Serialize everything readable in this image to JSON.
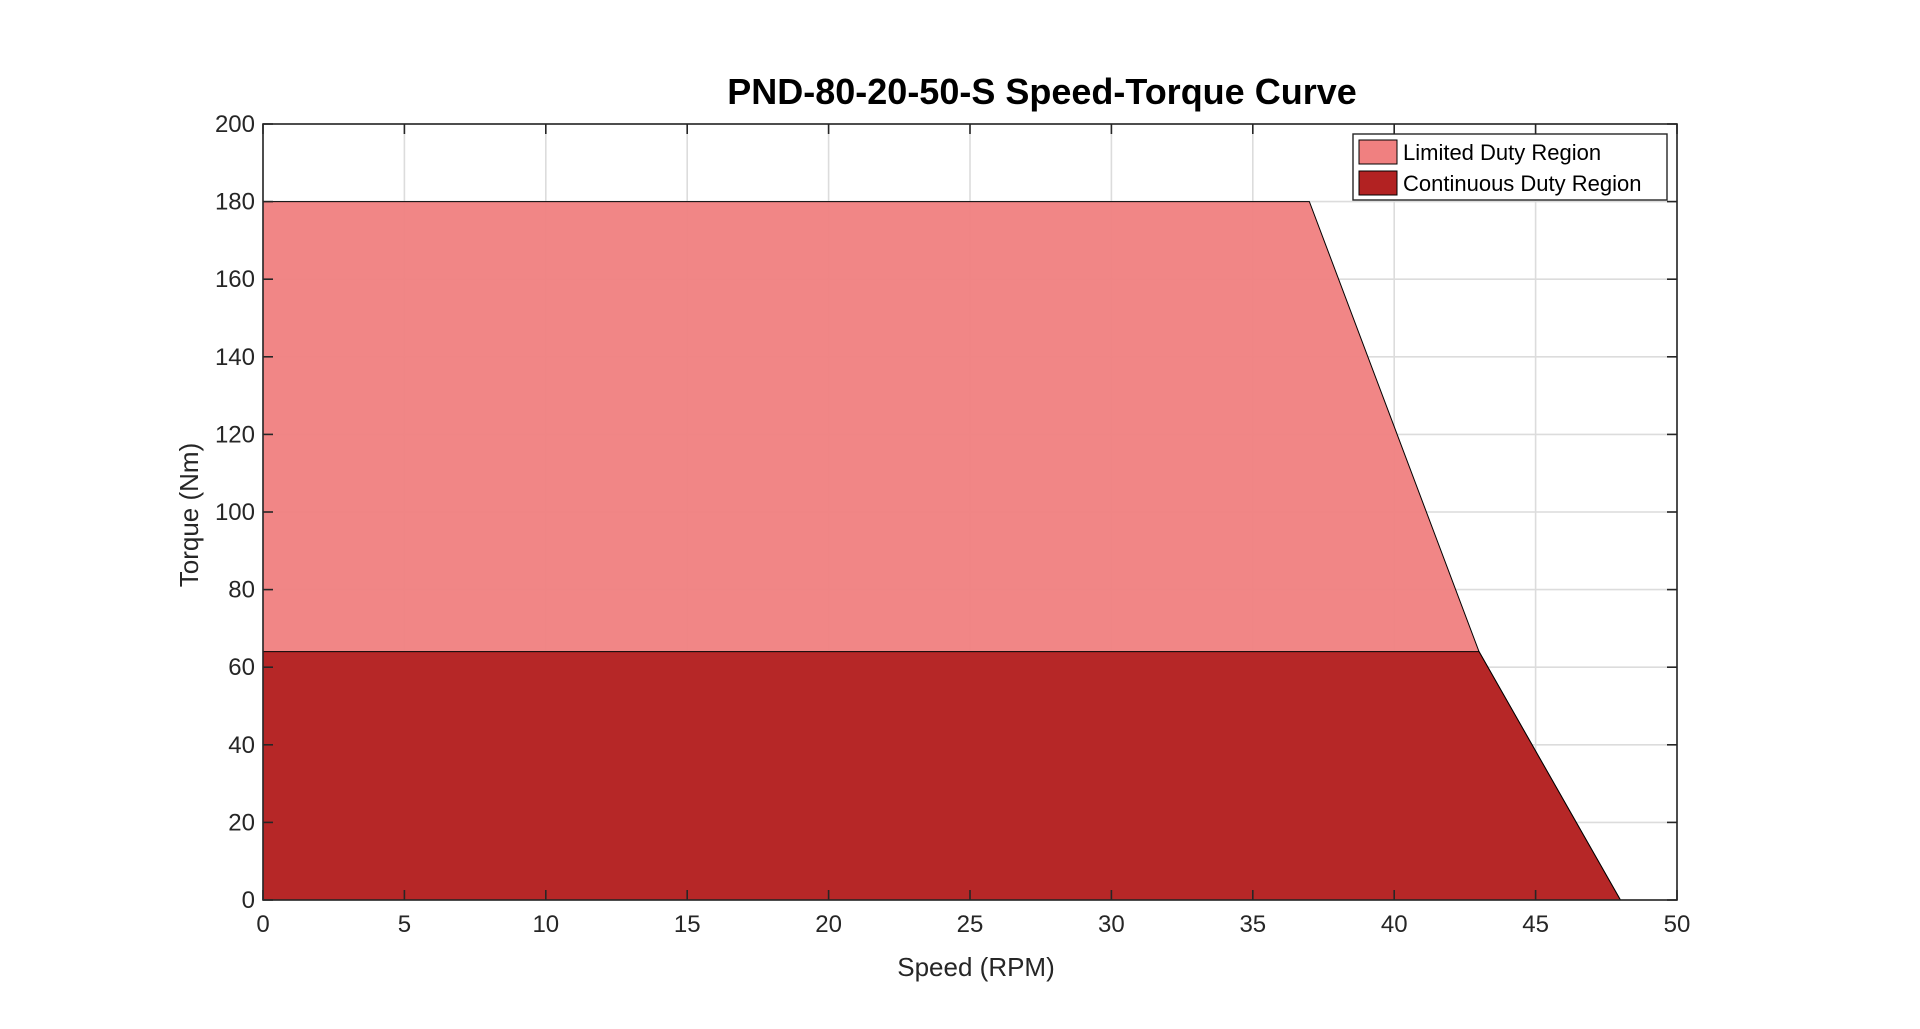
{
  "chart_data": {
    "type": "area",
    "title": "PND-80-20-50-S Speed-Torque Curve",
    "xlabel": "Speed (RPM)",
    "ylabel": "Torque (Nm)",
    "xlim": [
      0,
      50
    ],
    "ylim": [
      0,
      200
    ],
    "xticks": [
      0,
      5,
      10,
      15,
      20,
      25,
      30,
      35,
      40,
      45,
      50
    ],
    "yticks": [
      0,
      20,
      40,
      60,
      80,
      100,
      120,
      140,
      160,
      180,
      200
    ],
    "grid": true,
    "legend_location": "top-right",
    "series": [
      {
        "name": "Limited Duty Region",
        "color": "#F08080",
        "points": [
          [
            0,
            0
          ],
          [
            0,
            180
          ],
          [
            37,
            180
          ],
          [
            43,
            64
          ],
          [
            48,
            0
          ]
        ]
      },
      {
        "name": "Continuous Duty Region",
        "color": "#B22222",
        "points": [
          [
            0,
            0
          ],
          [
            0,
            64
          ],
          [
            43,
            64
          ],
          [
            48,
            0
          ]
        ]
      }
    ]
  }
}
